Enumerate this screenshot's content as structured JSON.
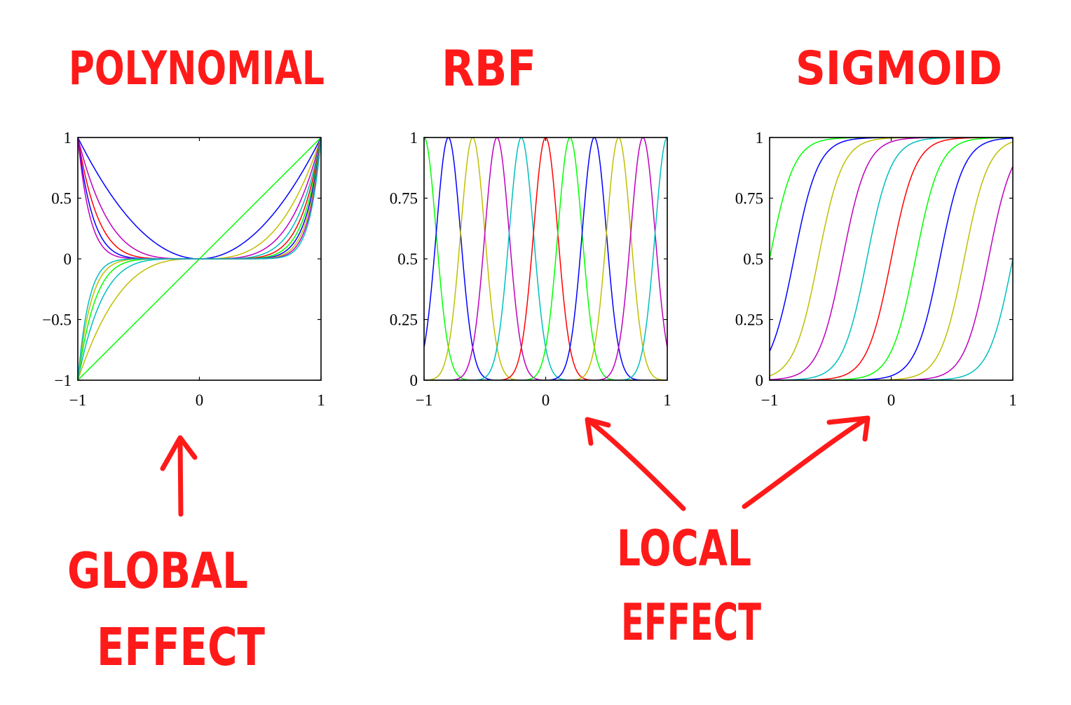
{
  "annotations": {
    "polynomial": "POLYNOMIAL",
    "rbf": "RBF",
    "sigmoid": "SIGMOID",
    "global_line1": "GLOBAL",
    "global_line2": "EFFECT",
    "local_line1": "LOCAL",
    "local_line2": "EFFECT",
    "annotation_color": "#ff1a1a"
  },
  "chart_data": [
    {
      "type": "line",
      "title": "",
      "xlabel": "",
      "ylabel": "",
      "xlim": [
        -1,
        1
      ],
      "ylim": [
        -1,
        1
      ],
      "x_ticks": [
        -1,
        0,
        1
      ],
      "x_tick_labels": [
        "−1",
        "0",
        "1"
      ],
      "y_ticks": [
        -1,
        -0.5,
        0,
        0.5,
        1
      ],
      "y_tick_labels": [
        "−1",
        "−0.5",
        "0",
        "0.5",
        "1"
      ],
      "grid": false,
      "function": "power",
      "series": [
        {
          "exponent": 1,
          "color": "#00ff00"
        },
        {
          "exponent": 2,
          "color": "#0000ff"
        },
        {
          "exponent": 3,
          "color": "#bfbf00"
        },
        {
          "exponent": 4,
          "color": "#bf00bf"
        },
        {
          "exponent": 5,
          "color": "#00bfbf"
        },
        {
          "exponent": 6,
          "color": "#ff0000"
        },
        {
          "exponent": 7,
          "color": "#00ff00"
        },
        {
          "exponent": 8,
          "color": "#0000ff"
        },
        {
          "exponent": 9,
          "color": "#bfbf00"
        },
        {
          "exponent": 10,
          "color": "#bf00bf"
        },
        {
          "exponent": 11,
          "color": "#00bfbf"
        }
      ]
    },
    {
      "type": "line",
      "title": "",
      "xlabel": "",
      "ylabel": "",
      "xlim": [
        -1,
        1
      ],
      "ylim": [
        0,
        1
      ],
      "x_ticks": [
        -1,
        0,
        1
      ],
      "x_tick_labels": [
        "−1",
        "0",
        "1"
      ],
      "y_ticks": [
        0,
        0.25,
        0.5,
        0.75,
        1
      ],
      "y_tick_labels": [
        "0",
        "0.25",
        "0.5",
        "0.75",
        "1"
      ],
      "grid": false,
      "function": "gaussian",
      "width_s": 0.1,
      "series": [
        {
          "center": -1.0,
          "color": "#00ff00"
        },
        {
          "center": -0.8,
          "color": "#0000ff"
        },
        {
          "center": -0.6,
          "color": "#bfbf00"
        },
        {
          "center": -0.4,
          "color": "#bf00bf"
        },
        {
          "center": -0.2,
          "color": "#00bfbf"
        },
        {
          "center": 0.0,
          "color": "#ff0000"
        },
        {
          "center": 0.2,
          "color": "#00ff00"
        },
        {
          "center": 0.4,
          "color": "#0000ff"
        },
        {
          "center": 0.6,
          "color": "#bfbf00"
        },
        {
          "center": 0.8,
          "color": "#bf00bf"
        },
        {
          "center": 1.0,
          "color": "#00bfbf"
        }
      ]
    },
    {
      "type": "line",
      "title": "",
      "xlabel": "",
      "ylabel": "",
      "xlim": [
        -1,
        1
      ],
      "ylim": [
        0,
        1
      ],
      "x_ticks": [
        -1,
        0,
        1
      ],
      "x_tick_labels": [
        "−1",
        "0",
        "1"
      ],
      "y_ticks": [
        0,
        0.25,
        0.5,
        0.75,
        1
      ],
      "y_tick_labels": [
        "0",
        "0.25",
        "0.5",
        "0.75",
        "1"
      ],
      "grid": false,
      "function": "logistic",
      "scale_s": 0.1,
      "series": [
        {
          "center": -1.0,
          "color": "#00ff00"
        },
        {
          "center": -0.8,
          "color": "#0000ff"
        },
        {
          "center": -0.6,
          "color": "#bfbf00"
        },
        {
          "center": -0.4,
          "color": "#bf00bf"
        },
        {
          "center": -0.2,
          "color": "#00bfbf"
        },
        {
          "center": 0.0,
          "color": "#ff0000"
        },
        {
          "center": 0.2,
          "color": "#00ff00"
        },
        {
          "center": 0.4,
          "color": "#0000ff"
        },
        {
          "center": 0.6,
          "color": "#bfbf00"
        },
        {
          "center": 0.8,
          "color": "#bf00bf"
        },
        {
          "center": 1.0,
          "color": "#00bfbf"
        }
      ]
    }
  ]
}
